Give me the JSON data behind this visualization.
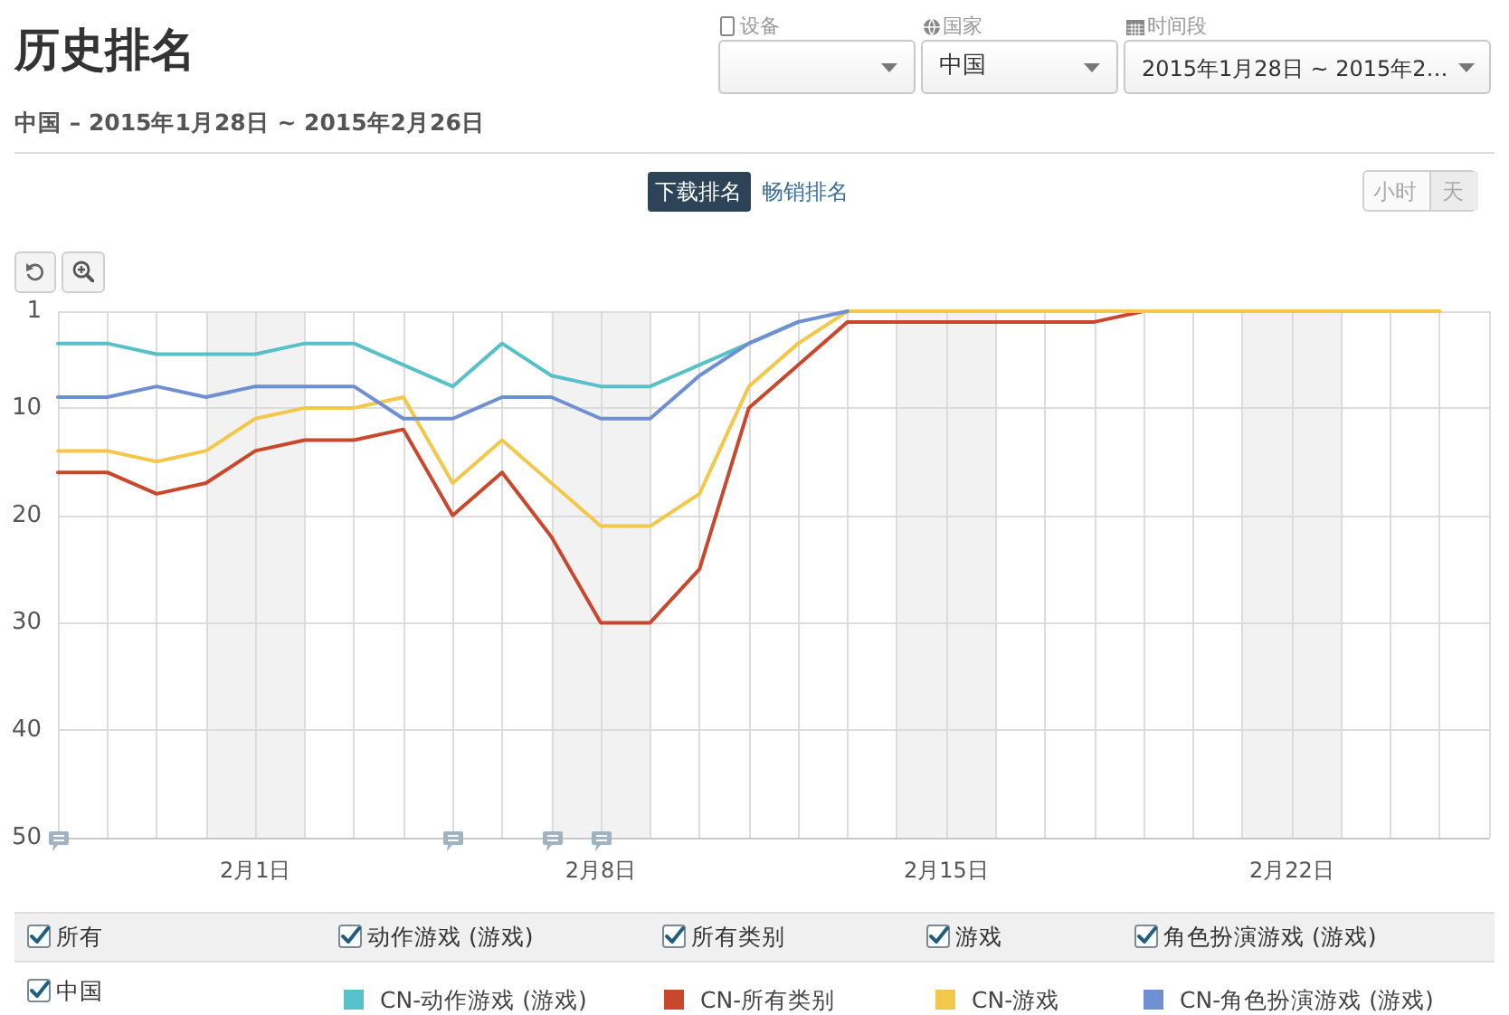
{
  "chart_data": {
    "type": "line",
    "title": "历史排名",
    "subtitle": "中国 – 2015年1月28日 ~ 2015年2月26日",
    "x": [
      "2015-01-28",
      "2015-01-29",
      "2015-01-30",
      "2015-01-31",
      "2015-02-01",
      "2015-02-02",
      "2015-02-03",
      "2015-02-04",
      "2015-02-05",
      "2015-02-06",
      "2015-02-07",
      "2015-02-08",
      "2015-02-09",
      "2015-02-10",
      "2015-02-11",
      "2015-02-12",
      "2015-02-13",
      "2015-02-14",
      "2015-02-15",
      "2015-02-16",
      "2015-02-17",
      "2015-02-18",
      "2015-02-19",
      "2015-02-20",
      "2015-02-21",
      "2015-02-22",
      "2015-02-23",
      "2015-02-24",
      "2015-02-25"
    ],
    "series": [
      {
        "name": "CN-动作游戏 (游戏)",
        "color": "#57c0c8",
        "values": [
          4,
          4,
          5,
          5,
          5,
          4,
          4,
          6,
          8,
          4,
          7,
          8,
          8,
          6,
          4,
          2,
          null,
          null,
          null,
          null,
          null,
          null,
          null,
          null,
          null,
          null,
          null,
          null,
          null
        ]
      },
      {
        "name": "CN-所有类别",
        "color": "#c9482d",
        "values": [
          16,
          16,
          18,
          17,
          14,
          13,
          13,
          12,
          20,
          16,
          22,
          30,
          30,
          25,
          10,
          6,
          2,
          2,
          2,
          2,
          2,
          2,
          1,
          null,
          null,
          null,
          null,
          null,
          null
        ]
      },
      {
        "name": "CN-游戏",
        "color": "#f3c84a",
        "values": [
          14,
          14,
          15,
          14,
          11,
          10,
          10,
          9,
          17,
          13,
          17,
          21,
          21,
          18,
          8,
          4,
          1,
          1,
          1,
          1,
          1,
          1,
          1,
          1,
          1,
          1,
          1,
          1,
          1
        ]
      },
      {
        "name": "CN-角色扮演游戏 (游戏)",
        "color": "#6e8fd2",
        "values": [
          9,
          9,
          8,
          9,
          8,
          8,
          8,
          11,
          11,
          9,
          9,
          11,
          11,
          7,
          4,
          2,
          1,
          null,
          null,
          null,
          null,
          null,
          null,
          null,
          null,
          null,
          null,
          null,
          null
        ]
      }
    ],
    "xlim": [
      "2015-01-28",
      "2015-02-26"
    ],
    "xticks": [
      {
        "value": "2015-01-28",
        "label": null
      },
      {
        "value": "2015-01-29",
        "label": null
      },
      {
        "value": "2015-01-30",
        "label": null
      },
      {
        "value": "2015-01-31",
        "label": null
      },
      {
        "value": "2015-02-01",
        "label": "2月1日"
      },
      {
        "value": "2015-02-02",
        "label": null
      },
      {
        "value": "2015-02-03",
        "label": null
      },
      {
        "value": "2015-02-04",
        "label": null
      },
      {
        "value": "2015-02-05",
        "label": null
      },
      {
        "value": "2015-02-06",
        "label": null
      },
      {
        "value": "2015-02-07",
        "label": null
      },
      {
        "value": "2015-02-08",
        "label": "2月8日"
      },
      {
        "value": "2015-02-09",
        "label": null
      },
      {
        "value": "2015-02-10",
        "label": null
      },
      {
        "value": "2015-02-11",
        "label": null
      },
      {
        "value": "2015-02-12",
        "label": null
      },
      {
        "value": "2015-02-13",
        "label": null
      },
      {
        "value": "2015-02-14",
        "label": null
      },
      {
        "value": "2015-02-15",
        "label": "2月15日"
      },
      {
        "value": "2015-02-16",
        "label": null
      },
      {
        "value": "2015-02-17",
        "label": null
      },
      {
        "value": "2015-02-18",
        "label": null
      },
      {
        "value": "2015-02-19",
        "label": null
      },
      {
        "value": "2015-02-20",
        "label": null
      },
      {
        "value": "2015-02-21",
        "label": null
      },
      {
        "value": "2015-02-22",
        "label": "2月22日"
      },
      {
        "value": "2015-02-23",
        "label": null
      },
      {
        "value": "2015-02-24",
        "label": null
      },
      {
        "value": "2015-02-25",
        "label": null
      },
      {
        "value": "2015-02-26",
        "label": null
      }
    ],
    "ylim": [
      50,
      1
    ],
    "yticks": [
      1,
      10,
      20,
      30,
      40,
      50
    ],
    "bands": [
      {
        "axis": "x",
        "from": "2015-01-31",
        "to": "2015-02-02",
        "color": "#f2f2f2"
      },
      {
        "axis": "x",
        "from": "2015-02-07",
        "to": "2015-02-09",
        "color": "#f2f2f2"
      },
      {
        "axis": "x",
        "from": "2015-02-14",
        "to": "2015-02-16",
        "color": "#f2f2f2"
      },
      {
        "axis": "x",
        "from": "2015-02-21",
        "to": "2015-02-23",
        "color": "#f2f2f2"
      }
    ],
    "grid": true,
    "legend": "bottom",
    "marker": "none",
    "annotations": [
      "设备",
      "国家",
      "中国",
      "时间段",
      "2015年1月28日 ~ 2015年2…",
      "下载排名",
      "畅销排名",
      "小时",
      "天",
      "所有",
      "动作游戏 (游戏)",
      "所有类别",
      "游戏",
      "角色扮演游戏 (游戏)",
      "中国"
    ]
  }
}
